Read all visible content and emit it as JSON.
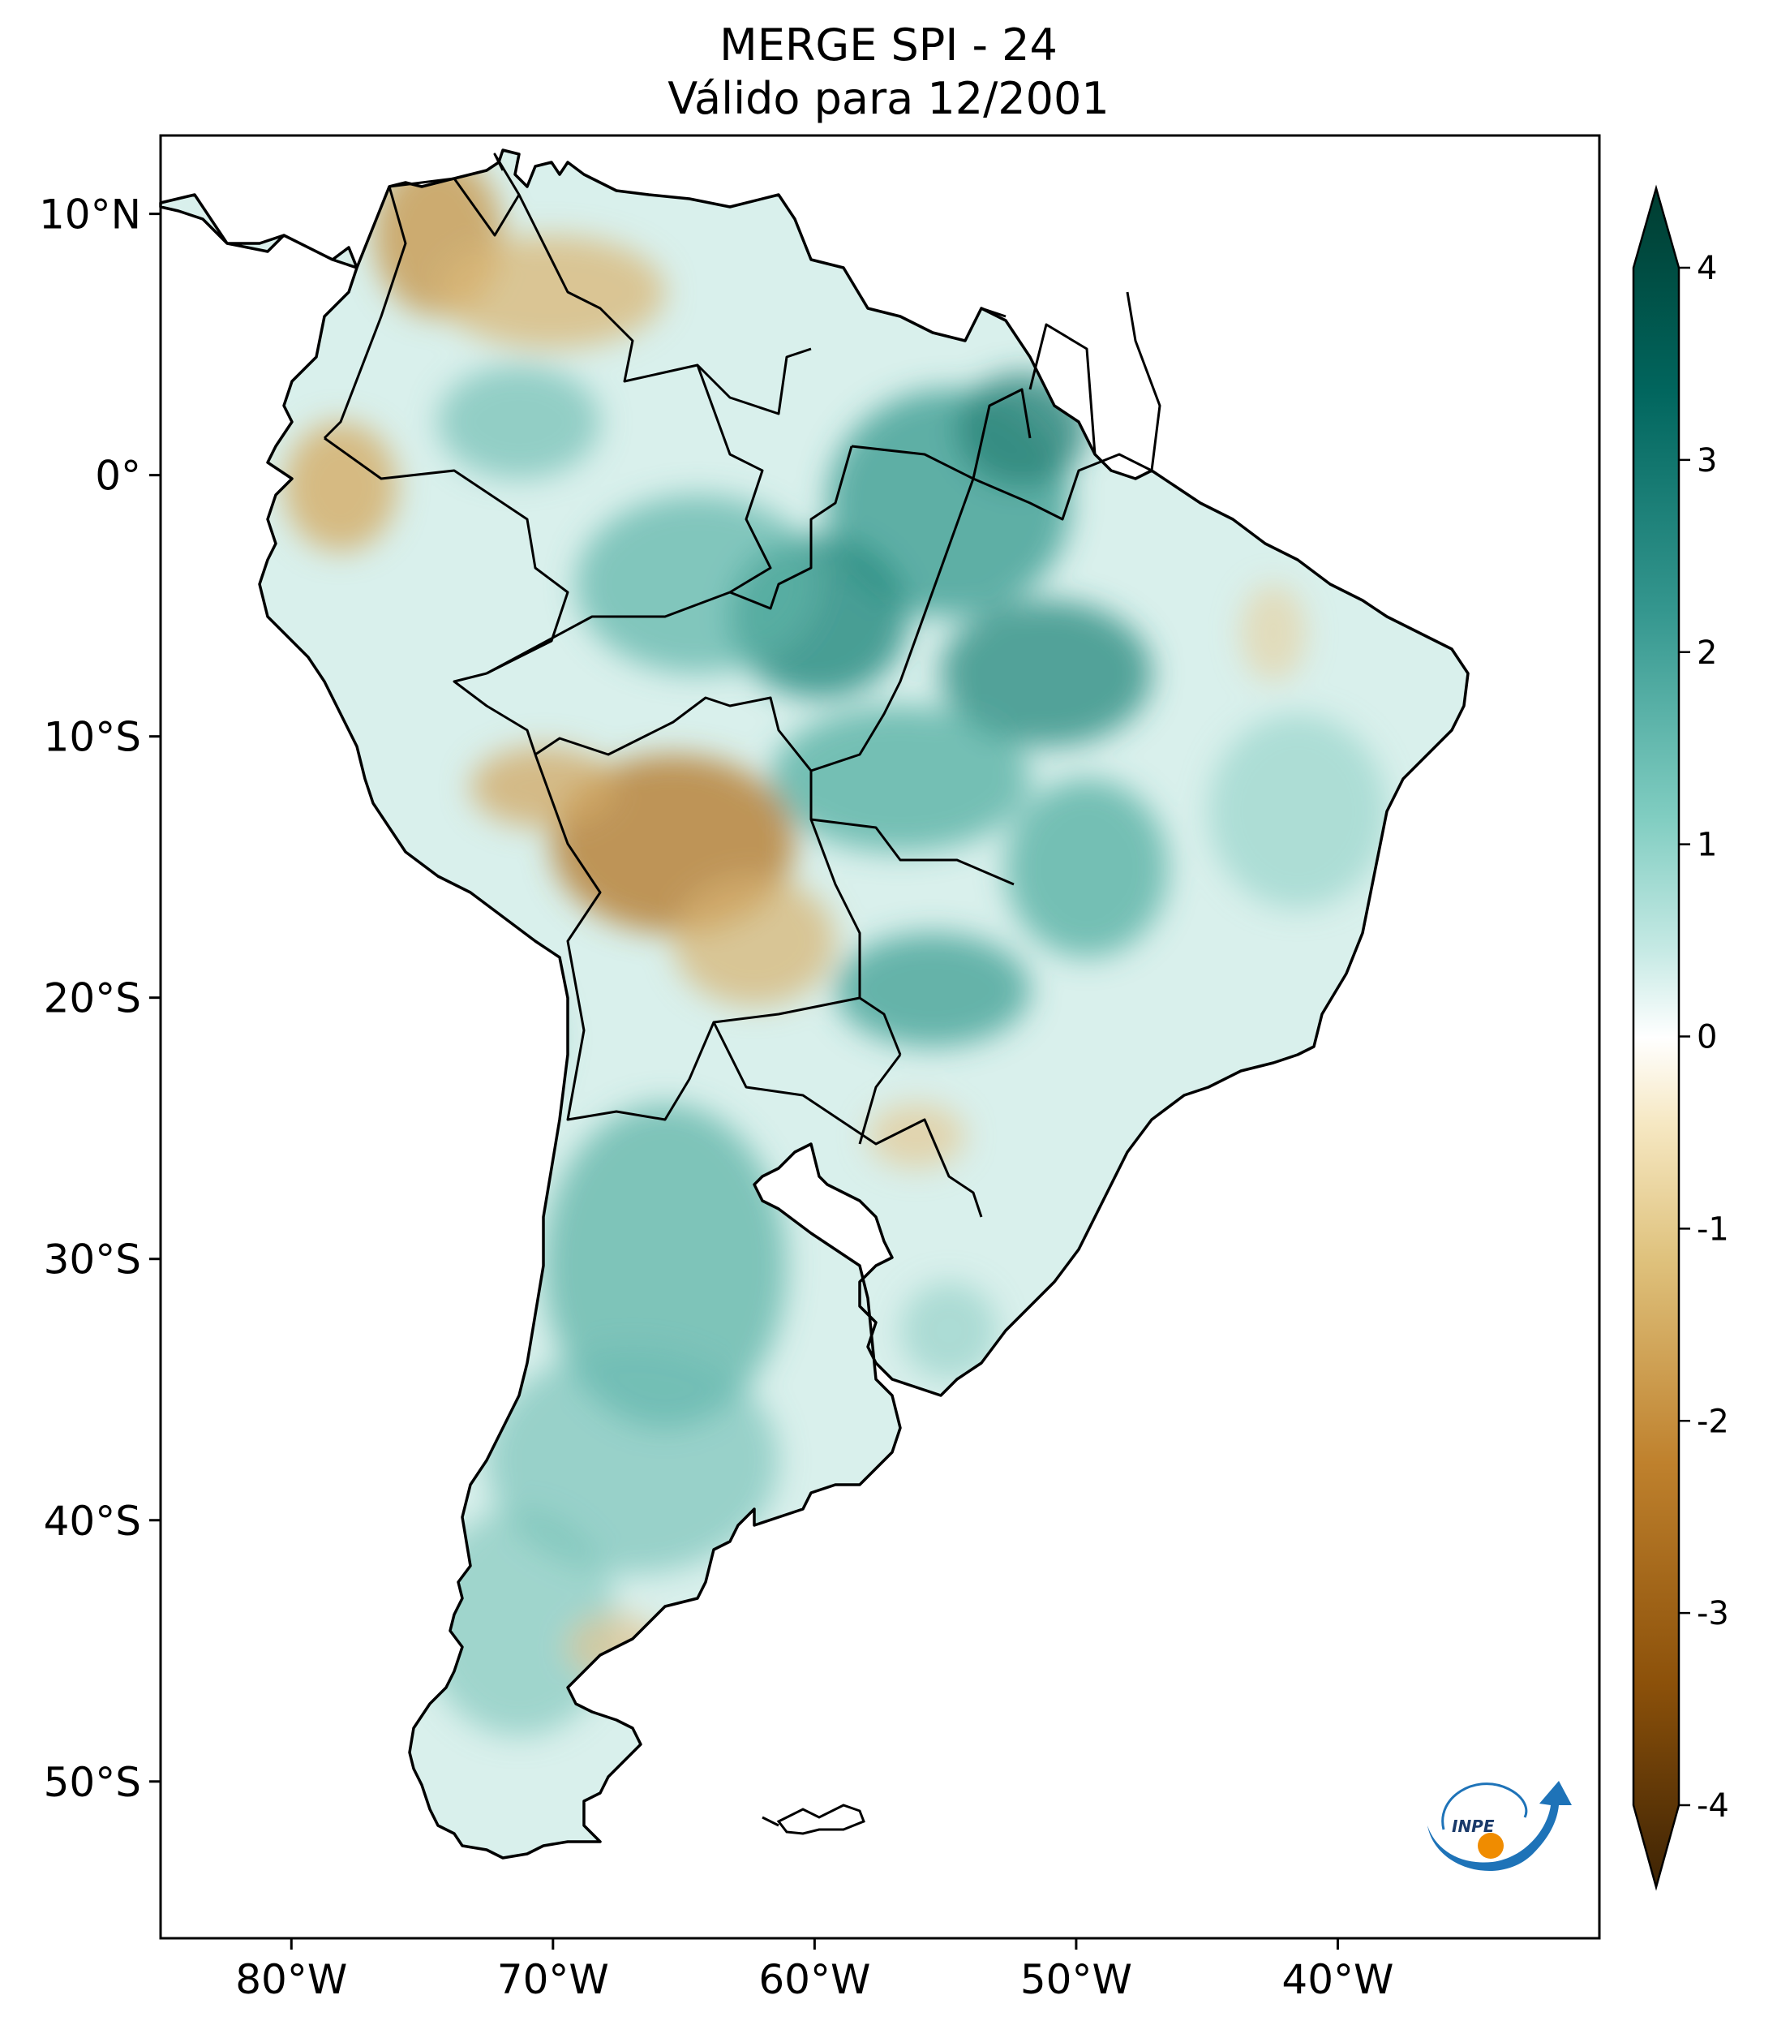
{
  "title": {
    "line1": "MERGE   SPI - 24",
    "line2": "Válido para 12/2001"
  },
  "map": {
    "region": "South America",
    "lat_ticks": [
      {
        "value": 10,
        "label": "10°N"
      },
      {
        "value": 0,
        "label": "0°"
      },
      {
        "value": -10,
        "label": "10°S"
      },
      {
        "value": -20,
        "label": "20°S"
      },
      {
        "value": -30,
        "label": "30°S"
      },
      {
        "value": -40,
        "label": "40°S"
      },
      {
        "value": -50,
        "label": "50°S"
      }
    ],
    "lon_ticks": [
      {
        "value": -80,
        "label": "80°W"
      },
      {
        "value": -70,
        "label": "70°W"
      },
      {
        "value": -60,
        "label": "60°W"
      },
      {
        "value": -50,
        "label": "50°W"
      },
      {
        "value": -40,
        "label": "40°W"
      }
    ],
    "lon_range": [
      -85,
      -30
    ],
    "lat_range": [
      -56,
      13
    ]
  },
  "colorbar": {
    "ticks": [
      {
        "value": 4,
        "label": "4"
      },
      {
        "value": 3,
        "label": "3"
      },
      {
        "value": 2,
        "label": "2"
      },
      {
        "value": 1,
        "label": "1"
      },
      {
        "value": 0,
        "label": "0"
      },
      {
        "value": -1,
        "label": "-1"
      },
      {
        "value": -2,
        "label": "-2"
      },
      {
        "value": -3,
        "label": "-3"
      },
      {
        "value": -4,
        "label": "-4"
      }
    ],
    "range": [
      -4,
      4
    ],
    "colormap": "BrBG",
    "stops": [
      "#3d2304",
      "#8c510a",
      "#bf812d",
      "#dfc27d",
      "#f6e8c3",
      "#ffffff",
      "#c7eae5",
      "#80cdc1",
      "#35978f",
      "#01665e",
      "#003c30"
    ]
  },
  "logo": {
    "text": "INPE"
  }
}
